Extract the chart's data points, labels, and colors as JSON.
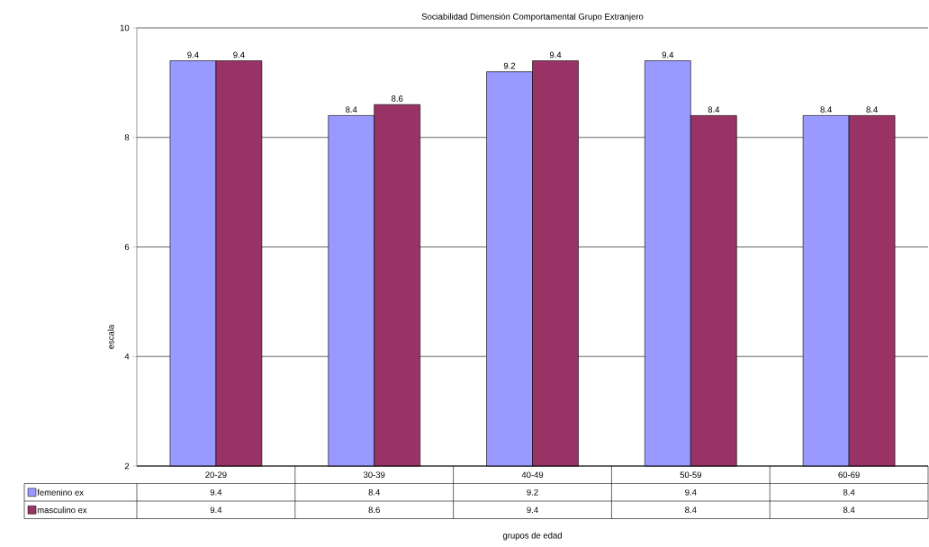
{
  "chart_data": {
    "type": "bar",
    "title": "Sociabilidad Dimensión Comportamental Grupo Extranjero",
    "annotations": [
      "grupos de edad",
      "9.4",
      "8.4",
      "9.2",
      "9.4",
      "8.4",
      "9.4",
      "8.6",
      "9.4",
      "8.4",
      "8.4"
    ],
    "ylabel": "escala",
    "categories": [
      "20-29",
      "30-39",
      "40-49",
      "50-59",
      "60-69"
    ],
    "series": [
      {
        "name": "femenino ex",
        "color": "#9999ff",
        "values": [
          9.4,
          8.4,
          9.2,
          9.4,
          8.4
        ],
        "value_labels": [
          "9.4",
          "8.4",
          "9.2",
          "9.4",
          "8.4"
        ]
      },
      {
        "name": "masculino ex",
        "color": "#993366",
        "values": [
          9.4,
          8.6,
          9.4,
          8.4,
          8.4
        ],
        "value_labels": [
          "9.4",
          "8.6",
          "9.4",
          "8.4",
          "8.4"
        ]
      }
    ],
    "ylim": [
      2,
      10
    ],
    "yticks": [
      2,
      4,
      6,
      8,
      10
    ],
    "grid": "y",
    "legend": "bottom"
  }
}
